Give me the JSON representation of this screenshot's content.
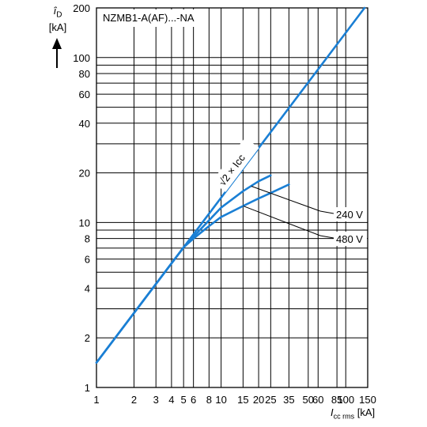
{
  "chart_data": {
    "type": "line",
    "title": "NZMB1-A(AF)...-NA",
    "x_scale": "log",
    "y_scale": "log",
    "xlim": [
      1,
      150
    ],
    "ylim": [
      1,
      200
    ],
    "grid": true,
    "x_ticks": [
      1,
      2,
      3,
      4,
      5,
      6,
      8,
      10,
      15,
      20,
      25,
      35,
      50,
      60,
      85,
      100,
      150
    ],
    "x_tick_labels": [
      "1",
      "2",
      "3",
      "4",
      "5",
      "6",
      "8",
      "10",
      "15",
      "20",
      "25",
      "35",
      "50",
      "60",
      "85",
      "100",
      "150"
    ],
    "y_ticks": [
      1,
      2,
      4,
      6,
      8,
      10,
      20,
      40,
      60,
      80,
      100,
      200
    ],
    "y_tick_labels": [
      "1",
      "2",
      "4",
      "6",
      "8",
      "10",
      "20",
      "40",
      "60",
      "80",
      "100",
      "200"
    ],
    "ylabel_symbol": "î",
    "ylabel_sub": "D",
    "ylabel_unit": "[kA]",
    "xlabel_symbol": "I",
    "xlabel_sub": "cc rms",
    "xlabel_unit": "[kA]",
    "line_color": "#1a7fd4",
    "series": [
      {
        "name": "√2 × Icc",
        "x": [
          1,
          150
        ],
        "y": [
          1.414,
          212
        ]
      },
      {
        "name": "240 V",
        "x": [
          1,
          5,
          6,
          8,
          10,
          15,
          20,
          25
        ],
        "y": [
          1.414,
          7.07,
          8.2,
          10.3,
          12.3,
          15.5,
          17.8,
          19.3
        ]
      },
      {
        "name": "480 V",
        "x": [
          1,
          5,
          6,
          8,
          10,
          15,
          20,
          25,
          35
        ],
        "y": [
          1.414,
          7.07,
          8.0,
          9.5,
          10.8,
          12.6,
          14.0,
          15.1,
          17.0
        ]
      }
    ],
    "annotations": [
      {
        "text": "√2 × Icc"
      },
      {
        "text": "240 V"
      },
      {
        "text": "480 V"
      }
    ]
  }
}
